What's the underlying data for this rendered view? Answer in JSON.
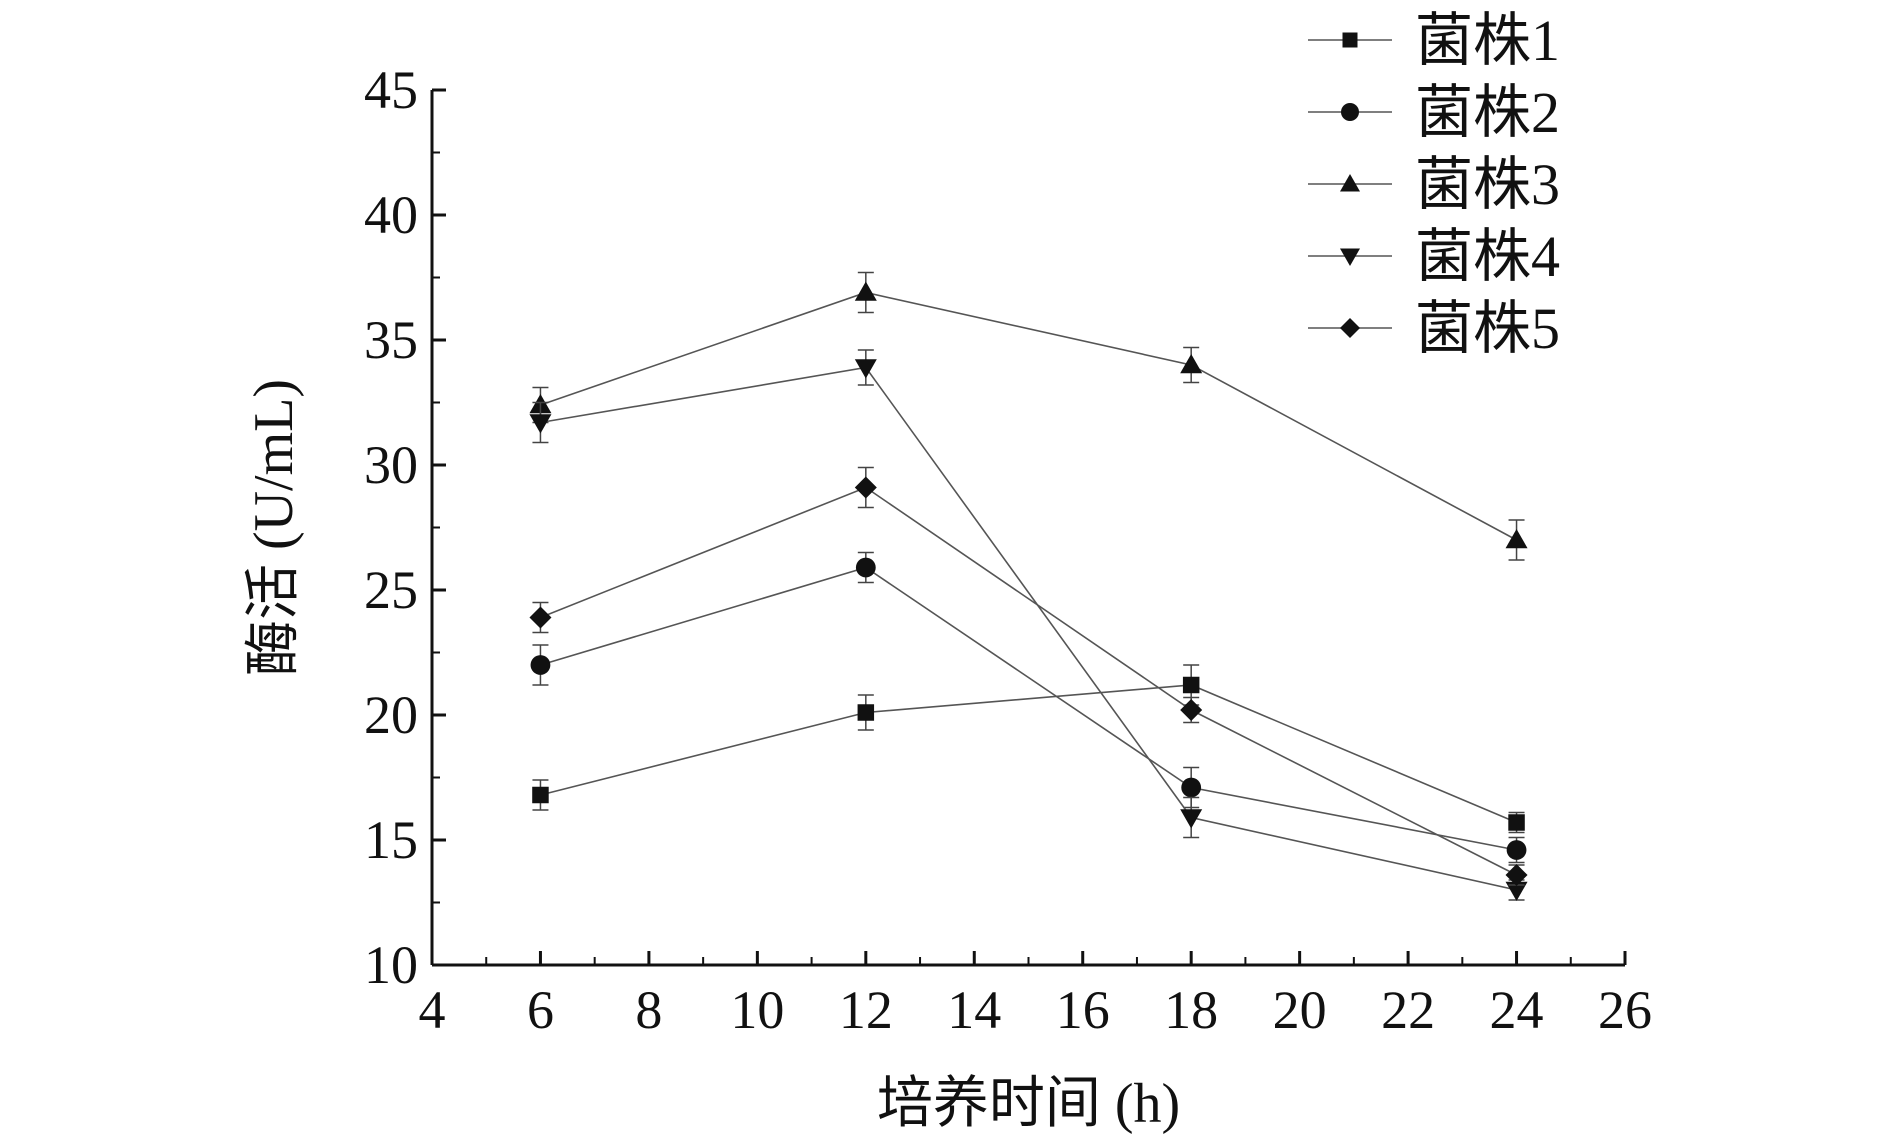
{
  "chart_data": {
    "type": "line",
    "xlabel": "培养时间 (h)",
    "ylabel": "酶活 (U/mL)",
    "xlim": [
      4,
      26
    ],
    "ylim": [
      10,
      45
    ],
    "x_ticks": [
      "4",
      "6",
      "8",
      "10",
      "12",
      "14",
      "16",
      "18",
      "20",
      "22",
      "24",
      "26"
    ],
    "y_ticks": [
      "10",
      "15",
      "20",
      "25",
      "30",
      "35",
      "40",
      "45"
    ],
    "x": [
      6,
      12,
      18,
      24
    ],
    "legend_position": "top-right",
    "grid": false,
    "line_color": "#555555",
    "marker_color": "#111111",
    "series": [
      {
        "name": "菌株1",
        "marker": "square",
        "values": [
          16.8,
          20.1,
          21.2,
          15.7
        ],
        "errors": [
          0.6,
          0.7,
          0.8,
          0.4
        ]
      },
      {
        "name": "菌株2",
        "marker": "circle",
        "values": [
          22.0,
          25.9,
          17.1,
          14.6
        ],
        "errors": [
          0.8,
          0.6,
          0.8,
          0.5
        ]
      },
      {
        "name": "菌株3",
        "marker": "triangle-up",
        "values": [
          32.4,
          36.9,
          34.0,
          27.0
        ],
        "errors": [
          0.7,
          0.8,
          0.7,
          0.8
        ]
      },
      {
        "name": "菌株4",
        "marker": "triangle-down",
        "values": [
          31.7,
          33.9,
          15.9,
          13.0
        ],
        "errors": [
          0.8,
          0.7,
          0.8,
          0.4
        ]
      },
      {
        "name": "菌株5",
        "marker": "diamond",
        "values": [
          23.9,
          29.1,
          20.2,
          13.6
        ],
        "errors": [
          0.6,
          0.8,
          0.5,
          0.4
        ]
      }
    ]
  }
}
